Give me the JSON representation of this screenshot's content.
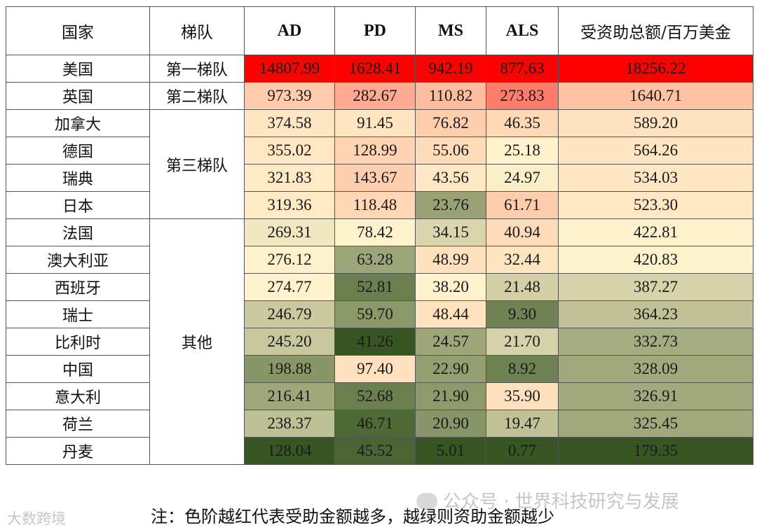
{
  "chart_data": {
    "type": "table",
    "columns": [
      "国家",
      "梯队",
      "AD",
      "PD",
      "MS",
      "ALS",
      "受资助总额/百万美金"
    ],
    "tiers": [
      {
        "label": "第一梯队",
        "countries": [
          "美国"
        ]
      },
      {
        "label": "第二梯队",
        "countries": [
          "英国"
        ]
      },
      {
        "label": "第三梯队",
        "countries": [
          "加拿大",
          "德国",
          "瑞典",
          "日本"
        ]
      },
      {
        "label": "其他",
        "countries": [
          "法国",
          "澳大利亚",
          "西班牙",
          "瑞士",
          "比利时",
          "中国",
          "意大利",
          "荷兰",
          "丹麦"
        ]
      }
    ],
    "rows": [
      {
        "country": "美国",
        "tier": "第一梯队",
        "AD": 14807.99,
        "PD": 1628.41,
        "MS": 942.19,
        "ALS": 877.63,
        "total": 18256.22
      },
      {
        "country": "英国",
        "tier": "第二梯队",
        "AD": 973.39,
        "PD": 282.67,
        "MS": 110.82,
        "ALS": 273.83,
        "total": 1640.71
      },
      {
        "country": "加拿大",
        "tier": "第三梯队",
        "AD": 374.58,
        "PD": 91.45,
        "MS": 76.82,
        "ALS": 46.35,
        "total": 589.2
      },
      {
        "country": "德国",
        "tier": "第三梯队",
        "AD": 355.02,
        "PD": 128.99,
        "MS": 55.06,
        "ALS": 25.18,
        "total": 564.26
      },
      {
        "country": "瑞典",
        "tier": "第三梯队",
        "AD": 321.83,
        "PD": 143.67,
        "MS": 43.56,
        "ALS": 24.97,
        "total": 534.03
      },
      {
        "country": "日本",
        "tier": "第三梯队",
        "AD": 319.36,
        "PD": 118.48,
        "MS": 23.76,
        "ALS": 61.71,
        "total": 523.3
      },
      {
        "country": "法国",
        "tier": "其他",
        "AD": 269.31,
        "PD": 78.42,
        "MS": 34.15,
        "ALS": 40.94,
        "total": 422.81
      },
      {
        "country": "澳大利亚",
        "tier": "其他",
        "AD": 276.12,
        "PD": 63.28,
        "MS": 48.99,
        "ALS": 32.44,
        "total": 420.83
      },
      {
        "country": "西班牙",
        "tier": "其他",
        "AD": 274.77,
        "PD": 52.81,
        "MS": 38.2,
        "ALS": 21.48,
        "total": 387.27
      },
      {
        "country": "瑞士",
        "tier": "其他",
        "AD": 246.79,
        "PD": 59.7,
        "MS": 48.44,
        "ALS": 9.3,
        "total": 364.23
      },
      {
        "country": "比利时",
        "tier": "其他",
        "AD": 245.2,
        "PD": 41.26,
        "MS": 24.57,
        "ALS": 21.7,
        "total": 332.73
      },
      {
        "country": "中国",
        "tier": "其他",
        "AD": 198.88,
        "PD": 97.4,
        "MS": 22.9,
        "ALS": 8.92,
        "total": 328.09
      },
      {
        "country": "意大利",
        "tier": "其他",
        "AD": 216.41,
        "PD": 52.68,
        "MS": 21.9,
        "ALS": 35.9,
        "total": 326.91
      },
      {
        "country": "荷兰",
        "tier": "其他",
        "AD": 238.37,
        "PD": 46.71,
        "MS": 20.9,
        "ALS": 19.47,
        "total": 325.45
      },
      {
        "country": "丹麦",
        "tier": "其他",
        "AD": 128.04,
        "PD": 45.52,
        "MS": 5.01,
        "ALS": 0.77,
        "total": 179.35
      }
    ],
    "color_scale": {
      "type": "heatmap-per-column",
      "high": "#ff0000",
      "mid": "#fff2cc",
      "low": "#375623"
    }
  },
  "note": "注：色阶越红代表受助金额越多，越绿则资助金额越少",
  "watermarks": {
    "right": "公众号 · 世界科技研究与发展",
    "left": "大数跨境"
  }
}
